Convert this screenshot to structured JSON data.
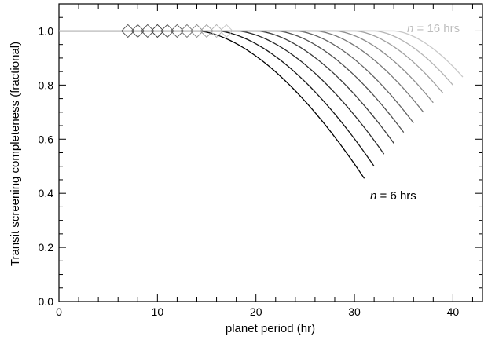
{
  "chart_data": {
    "type": "line",
    "title": "",
    "xlabel": "planet period (hr)",
    "ylabel": "Transit screening completeness (fractional)",
    "xlim": [
      0,
      43
    ],
    "ylim": [
      0,
      1.1
    ],
    "x_ticks": [
      "0",
      "10",
      "20",
      "30",
      "40"
    ],
    "y_ticks": [
      "0.0",
      "0.2",
      "0.4",
      "0.6",
      "0.8",
      "1.0"
    ],
    "grid": false,
    "legend": "none",
    "series_style": "grayscale from black (n = 6) to light gray (n = 16); each curve stays at 1.0 then falls after the diamond marker",
    "colors": {
      "darkest": "#000000",
      "lightest": "#c8c8c8",
      "diamond_edge": "#555555"
    },
    "series": [
      {
        "n_hrs": 6,
        "knee_x": 14.0,
        "end_x": 31.0,
        "end_y": 0.455,
        "diamond_x": 7.0
      },
      {
        "n_hrs": 7,
        "knee_x": 16.0,
        "end_x": 32.0,
        "end_y": 0.5,
        "diamond_x": 8.0
      },
      {
        "n_hrs": 8,
        "knee_x": 18.0,
        "end_x": 33.0,
        "end_y": 0.545,
        "diamond_x": 9.0
      },
      {
        "n_hrs": 9,
        "knee_x": 20.0,
        "end_x": 34.0,
        "end_y": 0.585,
        "diamond_x": 10.0
      },
      {
        "n_hrs": 10,
        "knee_x": 22.0,
        "end_x": 35.0,
        "end_y": 0.625,
        "diamond_x": 11.0
      },
      {
        "n_hrs": 11,
        "knee_x": 24.0,
        "end_x": 36.0,
        "end_y": 0.66,
        "diamond_x": 12.0
      },
      {
        "n_hrs": 12,
        "knee_x": 26.0,
        "end_x": 37.0,
        "end_y": 0.7,
        "diamond_x": 13.0
      },
      {
        "n_hrs": 13,
        "knee_x": 28.0,
        "end_x": 38.0,
        "end_y": 0.735,
        "diamond_x": 14.0
      },
      {
        "n_hrs": 14,
        "knee_x": 30.0,
        "end_x": 39.0,
        "end_y": 0.77,
        "diamond_x": 15.0
      },
      {
        "n_hrs": 15,
        "knee_x": 32.0,
        "end_x": 40.0,
        "end_y": 0.8,
        "diamond_x": 16.0
      },
      {
        "n_hrs": 16,
        "knee_x": 34.0,
        "end_x": 41.0,
        "end_y": 0.83,
        "diamond_x": 17.0
      }
    ],
    "annotations": {
      "high": {
        "italic": "n",
        "rest": " = 16 hrs"
      },
      "low": {
        "italic": "n",
        "rest": " = 6 hrs"
      }
    }
  }
}
